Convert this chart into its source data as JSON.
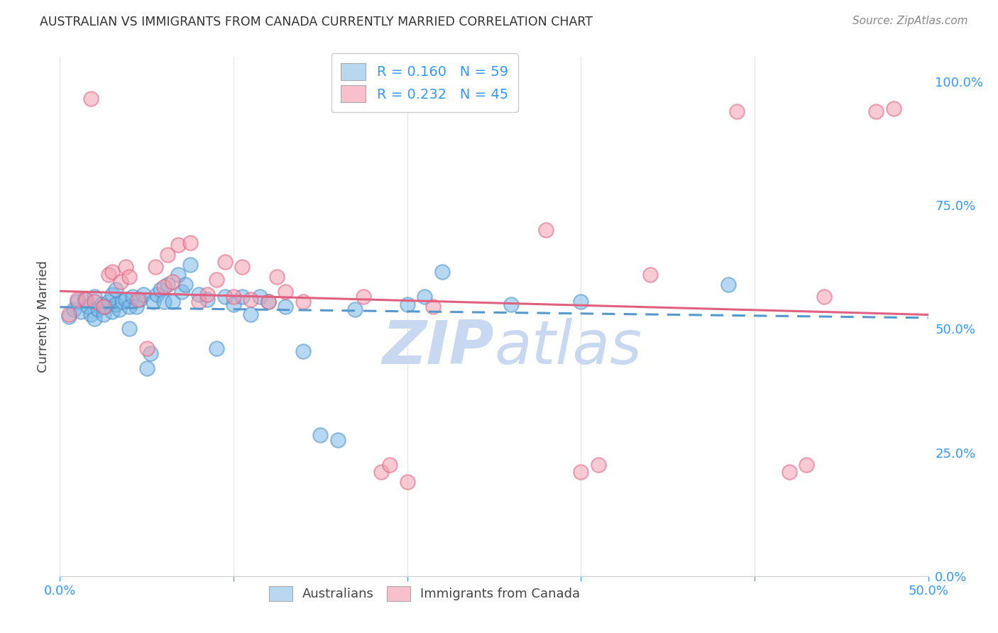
{
  "title": "AUSTRALIAN VS IMMIGRANTS FROM CANADA CURRENTLY MARRIED CORRELATION CHART",
  "source": "Source: ZipAtlas.com",
  "ylabel_label": "Currently Married",
  "x_min": 0.0,
  "x_max": 0.5,
  "y_min": 0.0,
  "y_max": 1.05,
  "x_ticks": [
    0.0,
    0.1,
    0.2,
    0.3,
    0.4,
    0.5
  ],
  "x_tick_labels_show": [
    "0.0%",
    "",
    "",
    "",
    "",
    "50.0%"
  ],
  "y_ticks": [
    0.0,
    0.25,
    0.5,
    0.75,
    1.0
  ],
  "y_tick_labels": [
    "0.0%",
    "25.0%",
    "50.0%",
    "75.0%",
    "100.0%"
  ],
  "blue_R": "0.160",
  "blue_N": "59",
  "pink_R": "0.232",
  "pink_N": "45",
  "blue_scatter_color": "#7ab8e8",
  "blue_edge_color": "#4a90c8",
  "pink_scatter_color": "#f4a0b0",
  "pink_edge_color": "#e06080",
  "legend_blue_fill": "#b8d8f0",
  "legend_pink_fill": "#f8c0cc",
  "blue_line_color": "#5599cc",
  "pink_line_color": "#e06080",
  "watermark_color": "#c8d8f0",
  "grid_color": "#dddddd",
  "title_color": "#333333",
  "axis_label_color": "#444444",
  "tick_color": "#3399ff",
  "blue_x": [
    0.005,
    0.008,
    0.01,
    0.012,
    0.014,
    0.016,
    0.018,
    0.02,
    0.02,
    0.022,
    0.024,
    0.025,
    0.026,
    0.028,
    0.03,
    0.03,
    0.032,
    0.032,
    0.034,
    0.036,
    0.038,
    0.04,
    0.04,
    0.042,
    0.044,
    0.046,
    0.048,
    0.05,
    0.052,
    0.054,
    0.056,
    0.058,
    0.06,
    0.062,
    0.065,
    0.068,
    0.07,
    0.072,
    0.075,
    0.08,
    0.085,
    0.09,
    0.095,
    0.1,
    0.105,
    0.11,
    0.115,
    0.12,
    0.13,
    0.14,
    0.15,
    0.16,
    0.17,
    0.2,
    0.21,
    0.22,
    0.26,
    0.3,
    0.385
  ],
  "blue_y": [
    0.525,
    0.54,
    0.555,
    0.535,
    0.56,
    0.545,
    0.53,
    0.52,
    0.565,
    0.54,
    0.55,
    0.53,
    0.545,
    0.555,
    0.535,
    0.57,
    0.55,
    0.58,
    0.54,
    0.555,
    0.56,
    0.5,
    0.545,
    0.565,
    0.545,
    0.56,
    0.57,
    0.42,
    0.45,
    0.555,
    0.57,
    0.58,
    0.555,
    0.59,
    0.555,
    0.61,
    0.575,
    0.59,
    0.63,
    0.57,
    0.56,
    0.46,
    0.565,
    0.55,
    0.565,
    0.53,
    0.565,
    0.555,
    0.545,
    0.455,
    0.285,
    0.275,
    0.54,
    0.55,
    0.565,
    0.615,
    0.55,
    0.555,
    0.59
  ],
  "pink_x": [
    0.005,
    0.01,
    0.015,
    0.018,
    0.02,
    0.025,
    0.028,
    0.03,
    0.035,
    0.038,
    0.04,
    0.045,
    0.05,
    0.055,
    0.06,
    0.062,
    0.065,
    0.068,
    0.075,
    0.08,
    0.085,
    0.09,
    0.095,
    0.1,
    0.105,
    0.11,
    0.12,
    0.125,
    0.13,
    0.14,
    0.175,
    0.185,
    0.19,
    0.2,
    0.215,
    0.28,
    0.3,
    0.31,
    0.34,
    0.39,
    0.42,
    0.43,
    0.44,
    0.47,
    0.48
  ],
  "pink_y": [
    0.53,
    0.56,
    0.56,
    0.965,
    0.555,
    0.545,
    0.61,
    0.615,
    0.595,
    0.625,
    0.605,
    0.56,
    0.46,
    0.625,
    0.585,
    0.65,
    0.595,
    0.67,
    0.675,
    0.555,
    0.57,
    0.6,
    0.635,
    0.565,
    0.625,
    0.56,
    0.555,
    0.605,
    0.575,
    0.555,
    0.565,
    0.21,
    0.225,
    0.19,
    0.545,
    0.7,
    0.21,
    0.225,
    0.61,
    0.94,
    0.21,
    0.225,
    0.565,
    0.94,
    0.945
  ],
  "blue_line_start_x": 0.0,
  "blue_line_end_x": 0.5,
  "pink_line_start_x": 0.0,
  "pink_line_end_x": 0.5
}
